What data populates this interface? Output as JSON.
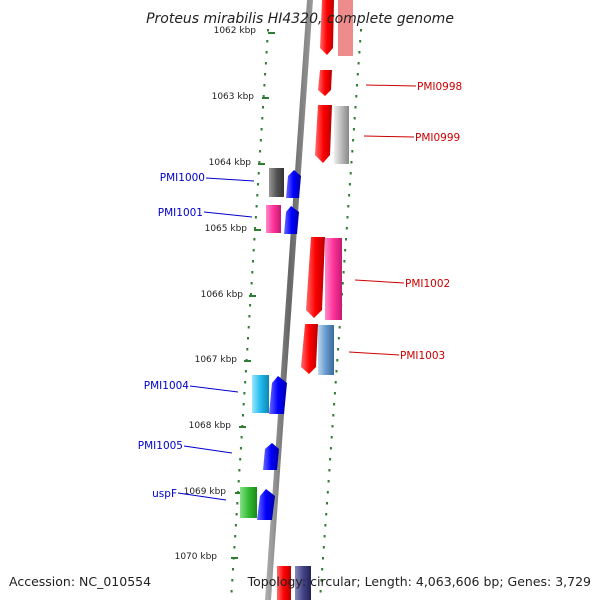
{
  "title": "Proteus mirabilis HI4320, complete genome",
  "footer": {
    "accession": "Accession: NC_010554",
    "topology": "Topology: circular; Length: 4,063,606 bp; Genes: 3,729"
  },
  "ticks": [
    "1062 kbp",
    "1063 kbp",
    "1064 kbp",
    "1065 kbp",
    "1066 kbp",
    "1067 kbp",
    "1068 kbp",
    "1069 kbp",
    "1070 kbp"
  ],
  "colors": {
    "reverse_label": "#0000cc",
    "forward_label": "#cc0000",
    "backbone": "#8a8a8a",
    "dots": "#2e7d32"
  },
  "left_genes": [
    {
      "label": "PMI1000",
      "feature_color": "#555555"
    },
    {
      "label": "PMI1001",
      "feature_color": "#ff3399"
    },
    {
      "label": "PMI1004",
      "feature_color": "#22bbee"
    },
    {
      "label": "PMI1005",
      "feature_color": ""
    },
    {
      "label": "uspF",
      "feature_color": "#33bb33"
    }
  ],
  "right_genes": [
    {
      "label": "PMI0998",
      "feature_color": ""
    },
    {
      "label": "PMI0999",
      "feature_color": "#bbbbbb"
    },
    {
      "label": "PMI1002",
      "feature_color": "#ff3399"
    },
    {
      "label": "PMI1003",
      "feature_color": "#6699cc"
    }
  ]
}
